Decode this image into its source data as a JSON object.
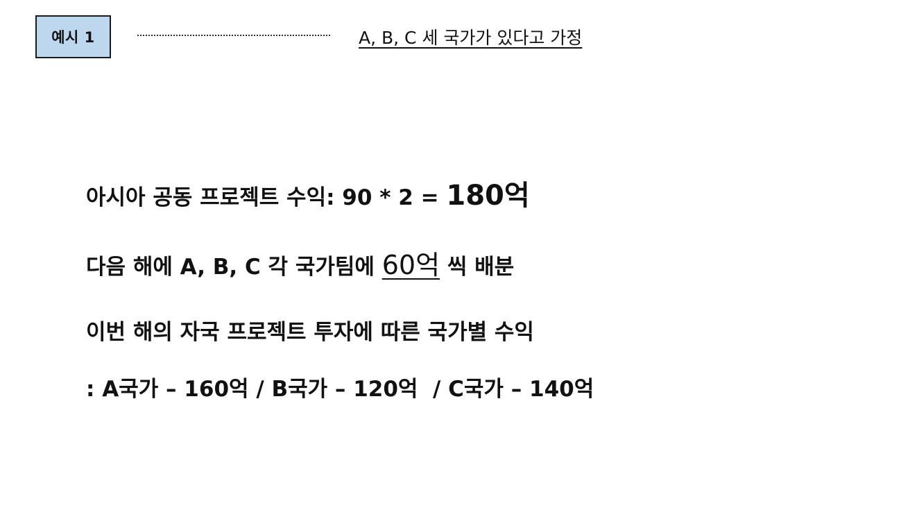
{
  "header": {
    "tag_label": "예시 1",
    "note": "A, B, C 세 국가가 있다고 가정"
  },
  "body": {
    "line1_text": "아시아 공동 프로젝트 수익: 90 * 2 = ",
    "line1_emphasis": "180억",
    "line2_prefix": "다음 해에 A, B, C 각 국가팀에 ",
    "line2_emphasis": "60억",
    "line2_suffix": " 씩 배분",
    "line3_text": "이번 해의 자국 프로젝트 투자에 따른 국가별 수익",
    "line4_text": ": A국가 – 160억 / B국가 – 120억  / C국가 – 140억"
  },
  "colors": {
    "tag_background": "#bdd7ee",
    "text": "#111111"
  }
}
